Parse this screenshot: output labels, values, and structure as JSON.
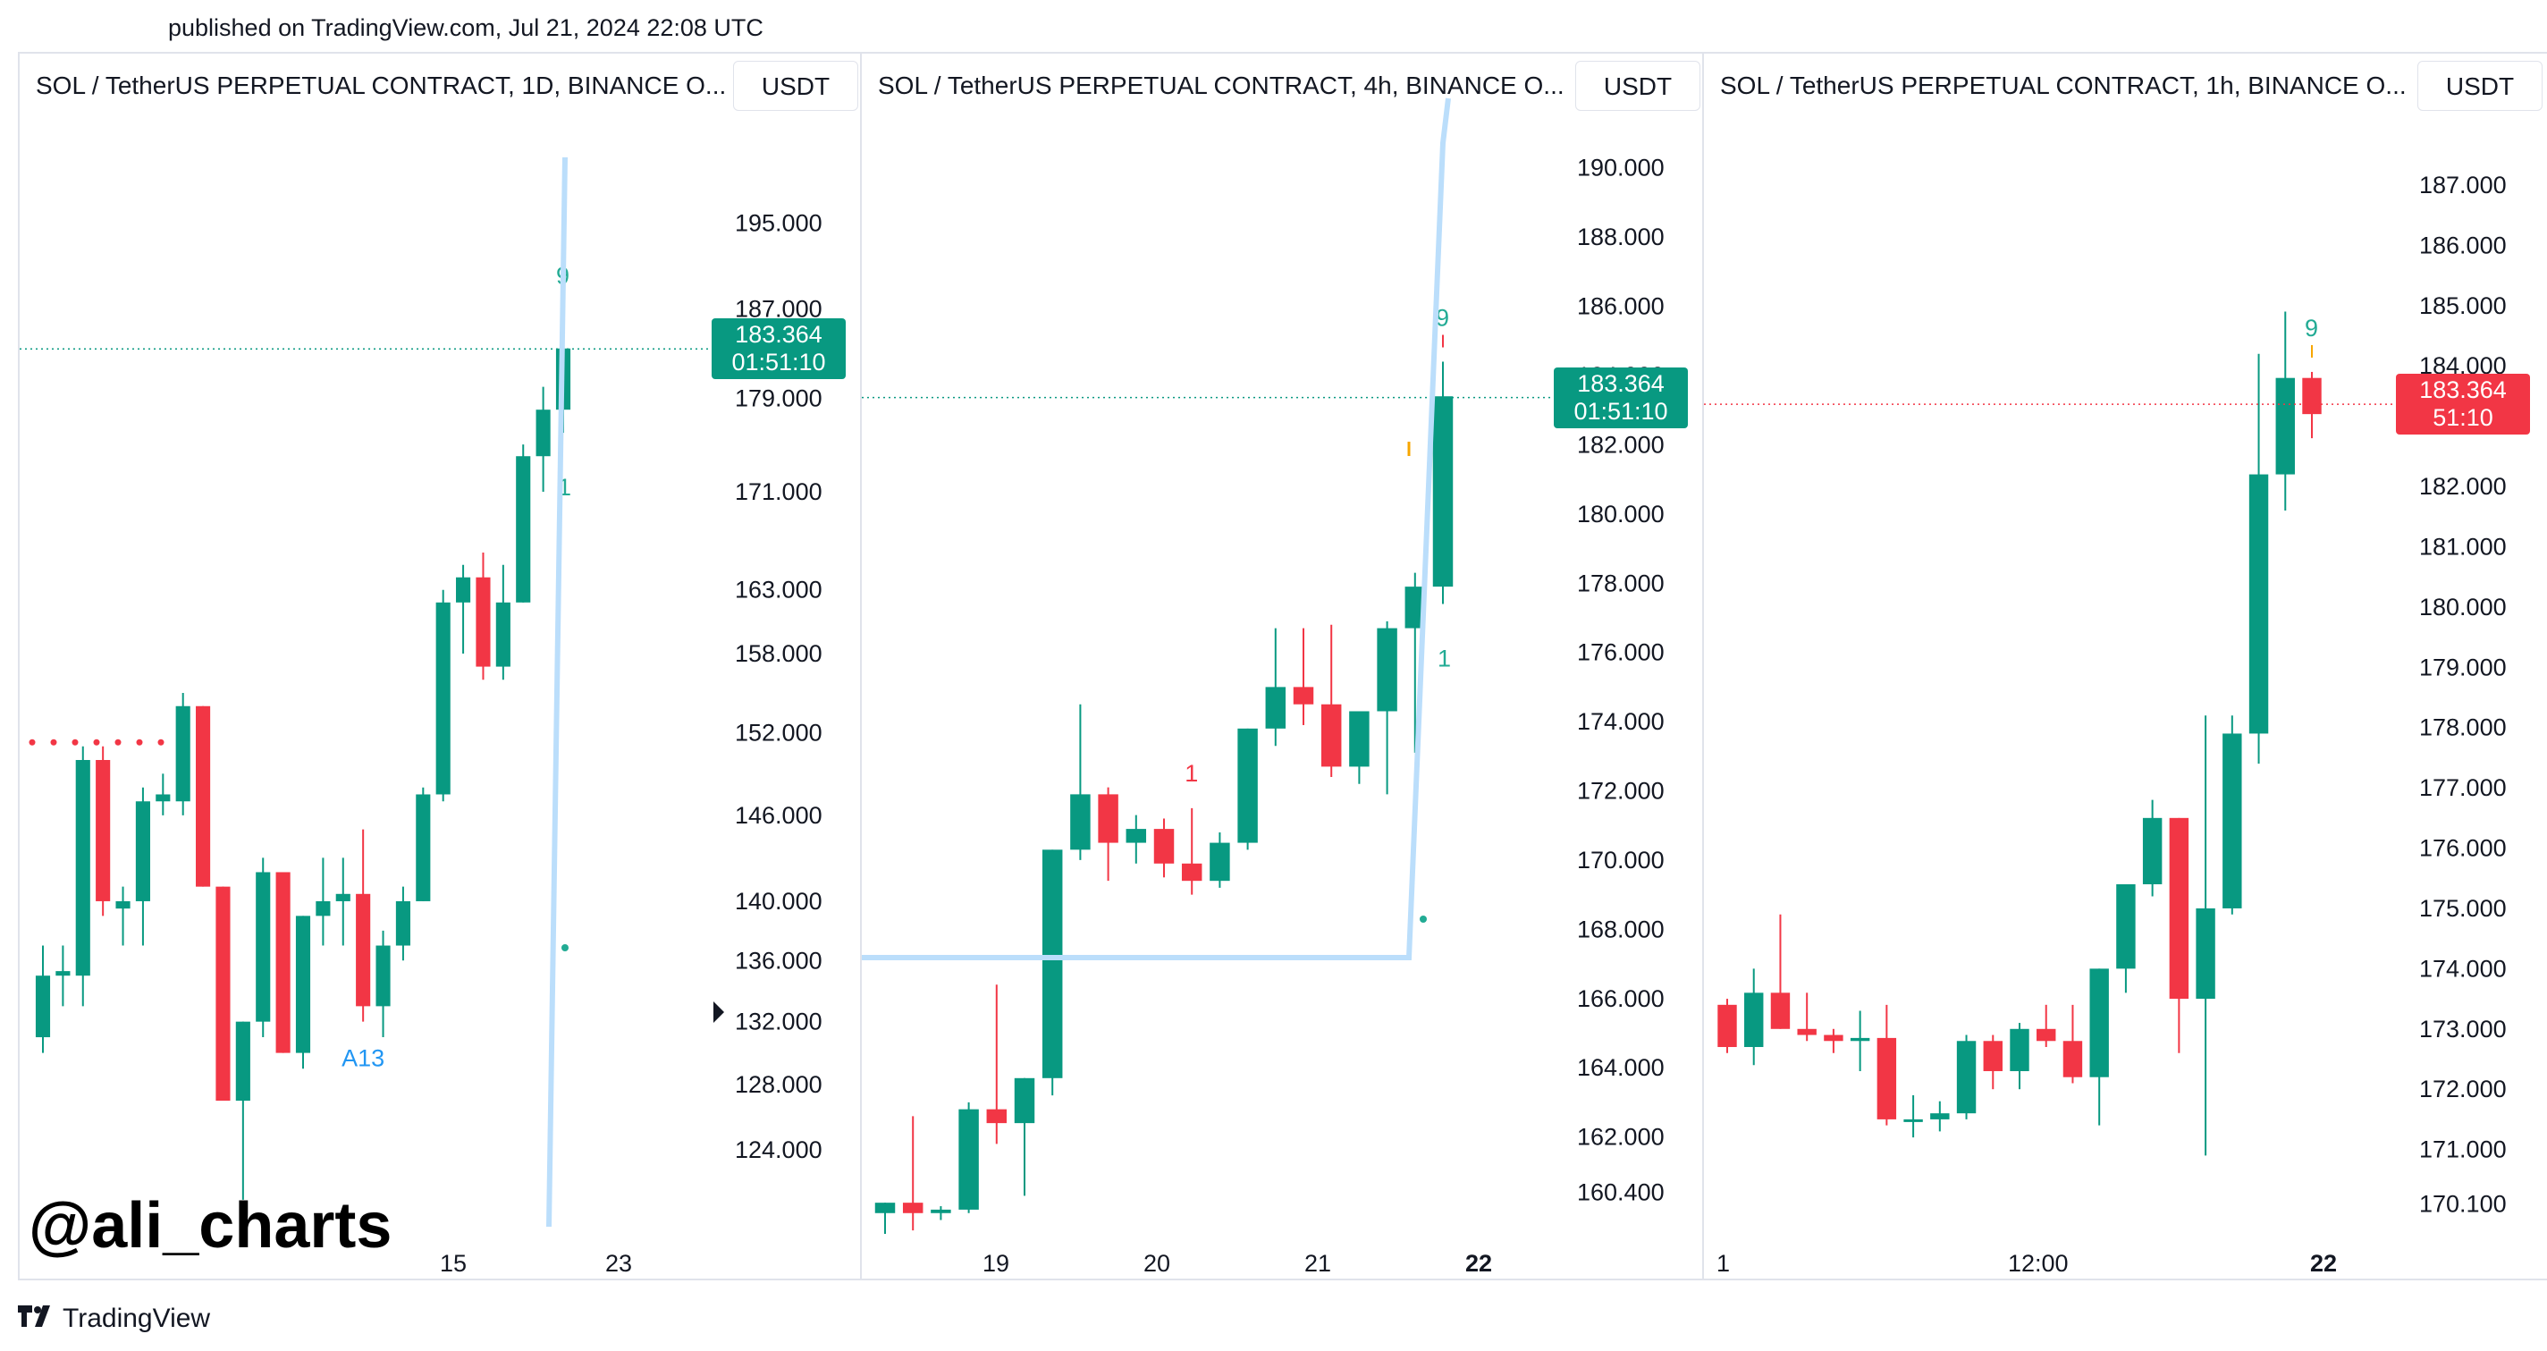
{
  "published": "published on TradingView.com, Jul 21, 2024 22:08 UTC",
  "watermark": "@ali_charts",
  "brand": "TradingView",
  "colors": {
    "up": "#089981",
    "down": "#f23645",
    "trendline": "#bbdefb",
    "td": "#22ab94",
    "dotted_red": "#f23645",
    "axis_text": "#131722"
  },
  "panels": [
    {
      "title": "SOL / TetherUS PERPETUAL CONTRACT, 1D, BINANCE  O...",
      "unit": "USDT",
      "price_tag": {
        "price": "183.364",
        "timer": "01:51:10",
        "color": "#089981"
      }
    },
    {
      "title": "SOL / TetherUS PERPETUAL CONTRACT, 4h, BINANCE  O...",
      "unit": "USDT",
      "price_tag": {
        "price": "183.364",
        "timer": "01:51:10",
        "color": "#089981"
      }
    },
    {
      "title": "SOL / TetherUS PERPETUAL CONTRACT, 1h, BINANCE  O...",
      "unit": "USDT",
      "price_tag": {
        "price": "183.364",
        "timer": "51:10",
        "color": "#f23645"
      }
    }
  ],
  "chart_data": [
    {
      "type": "candlestick",
      "timeframe": "1D",
      "scale": "log",
      "y_ticks": [
        "195.000",
        "187.000",
        "179.000",
        "171.000",
        "163.000",
        "158.000",
        "152.000",
        "146.000",
        "140.000",
        "136.000",
        "132.000",
        "128.000",
        "124.000"
      ],
      "x_ticks": [
        "15",
        "23"
      ],
      "last_price": 183.364,
      "candles": [
        {
          "o": 131,
          "h": 137,
          "l": 130,
          "c": 135
        },
        {
          "o": 135,
          "h": 137,
          "l": 133,
          "c": 135.3
        },
        {
          "o": 135,
          "h": 151,
          "l": 133,
          "c": 150
        },
        {
          "o": 150,
          "h": 151,
          "l": 139,
          "c": 140
        },
        {
          "o": 139.5,
          "h": 141,
          "l": 137,
          "c": 140
        },
        {
          "o": 140,
          "h": 148,
          "l": 137,
          "c": 147
        },
        {
          "o": 147,
          "h": 149,
          "l": 146,
          "c": 147.5
        },
        {
          "o": 147,
          "h": 155,
          "l": 146,
          "c": 154
        },
        {
          "o": 154,
          "h": 154,
          "l": 141,
          "c": 141
        },
        {
          "o": 141,
          "h": 141,
          "l": 127,
          "c": 127
        },
        {
          "o": 127,
          "h": 132,
          "l": 121,
          "c": 132
        },
        {
          "o": 132,
          "h": 143,
          "l": 131,
          "c": 142
        },
        {
          "o": 142,
          "h": 142,
          "l": 130,
          "c": 130
        },
        {
          "o": 130,
          "h": 139,
          "l": 129,
          "c": 139
        },
        {
          "o": 139,
          "h": 143,
          "l": 137,
          "c": 140
        },
        {
          "o": 140,
          "h": 143,
          "l": 137,
          "c": 140.5
        },
        {
          "o": 140.5,
          "h": 145,
          "l": 132,
          "c": 133
        },
        {
          "o": 133,
          "h": 138,
          "l": 131,
          "c": 137
        },
        {
          "o": 137,
          "h": 141,
          "l": 136,
          "c": 140
        },
        {
          "o": 140,
          "h": 148,
          "l": 140,
          "c": 147.5
        },
        {
          "o": 147.5,
          "h": 163,
          "l": 147,
          "c": 162
        },
        {
          "o": 162,
          "h": 165,
          "l": 158,
          "c": 164
        },
        {
          "o": 164,
          "h": 166,
          "l": 156,
          "c": 157
        },
        {
          "o": 157,
          "h": 165,
          "l": 156,
          "c": 162
        },
        {
          "o": 162,
          "h": 175,
          "l": 162,
          "c": 174
        },
        {
          "o": 174,
          "h": 180,
          "l": 171,
          "c": 178
        },
        {
          "o": 178,
          "h": 186,
          "l": 176,
          "c": 183.4
        }
      ],
      "annotations": [
        {
          "text": "9",
          "candle": 26,
          "kind": "td-top"
        },
        {
          "text": "1",
          "candle": 26,
          "kind": "td-below"
        },
        {
          "text": "A13",
          "candle": 16,
          "kind": "label-blue"
        }
      ]
    },
    {
      "type": "candlestick",
      "timeframe": "4h",
      "scale": "linear",
      "y_ticks": [
        "190.000",
        "188.000",
        "186.000",
        "184.000",
        "182.000",
        "180.000",
        "178.000",
        "176.000",
        "174.000",
        "172.000",
        "170.000",
        "168.000",
        "166.000",
        "164.000",
        "162.000",
        "160.400"
      ],
      "x_ticks": [
        "19",
        "20",
        "21",
        "22"
      ],
      "last_price": 183.364,
      "candles": [
        {
          "o": 159.8,
          "h": 160.1,
          "l": 159.2,
          "c": 160.1
        },
        {
          "o": 160.1,
          "h": 162.6,
          "l": 159.3,
          "c": 159.8
        },
        {
          "o": 159.8,
          "h": 160.0,
          "l": 159.6,
          "c": 159.9
        },
        {
          "o": 159.9,
          "h": 163.0,
          "l": 159.8,
          "c": 162.8
        },
        {
          "o": 162.8,
          "h": 166.4,
          "l": 161.8,
          "c": 162.4
        },
        {
          "o": 162.4,
          "h": 163.7,
          "l": 160.3,
          "c": 163.7
        },
        {
          "o": 163.7,
          "h": 170.3,
          "l": 163.2,
          "c": 170.3
        },
        {
          "o": 170.3,
          "h": 174.5,
          "l": 170.0,
          "c": 171.9
        },
        {
          "o": 171.9,
          "h": 172.1,
          "l": 169.4,
          "c": 170.5
        },
        {
          "o": 170.5,
          "h": 171.3,
          "l": 169.9,
          "c": 170.9
        },
        {
          "o": 170.9,
          "h": 171.2,
          "l": 169.5,
          "c": 169.9
        },
        {
          "o": 169.9,
          "h": 171.5,
          "l": 169.0,
          "c": 169.4
        },
        {
          "o": 169.4,
          "h": 170.8,
          "l": 169.2,
          "c": 170.5
        },
        {
          "o": 170.5,
          "h": 173.8,
          "l": 170.3,
          "c": 173.8
        },
        {
          "o": 173.8,
          "h": 176.7,
          "l": 173.3,
          "c": 175.0
        },
        {
          "o": 175.0,
          "h": 176.7,
          "l": 173.9,
          "c": 174.5
        },
        {
          "o": 174.5,
          "h": 176.8,
          "l": 172.4,
          "c": 172.7
        },
        {
          "o": 172.7,
          "h": 174.1,
          "l": 172.2,
          "c": 174.3
        },
        {
          "o": 174.3,
          "h": 176.9,
          "l": 171.9,
          "c": 176.7
        },
        {
          "o": 176.7,
          "h": 178.3,
          "l": 173.1,
          "c": 177.9
        },
        {
          "o": 177.9,
          "h": 184.4,
          "l": 177.4,
          "c": 183.4
        }
      ],
      "annotations": [
        {
          "text": "9",
          "candle": 20,
          "kind": "td-top"
        },
        {
          "text": "1",
          "candle": 20,
          "kind": "td-below"
        },
        {
          "text": "1",
          "candle": 11,
          "kind": "td-red"
        }
      ]
    },
    {
      "type": "candlestick",
      "timeframe": "1h",
      "scale": "linear",
      "y_ticks": [
        "187.000",
        "186.000",
        "185.000",
        "184.000",
        "183.000",
        "182.000",
        "181.000",
        "180.000",
        "179.000",
        "178.000",
        "177.000",
        "176.000",
        "175.000",
        "174.000",
        "173.000",
        "172.000",
        "171.000",
        "170.100"
      ],
      "x_ticks": [
        "1",
        "12:00",
        "22"
      ],
      "last_price": 183.364,
      "candles": [
        {
          "o": 173.4,
          "h": 173.5,
          "l": 172.6,
          "c": 172.7
        },
        {
          "o": 172.7,
          "h": 174.0,
          "l": 172.4,
          "c": 173.6
        },
        {
          "o": 173.6,
          "h": 174.9,
          "l": 173.0,
          "c": 173.0
        },
        {
          "o": 173.0,
          "h": 173.6,
          "l": 172.8,
          "c": 172.9
        },
        {
          "o": 172.9,
          "h": 173.0,
          "l": 172.6,
          "c": 172.8
        },
        {
          "o": 172.8,
          "h": 173.3,
          "l": 172.3,
          "c": 172.85
        },
        {
          "o": 172.85,
          "h": 173.4,
          "l": 171.4,
          "c": 171.5
        },
        {
          "o": 171.5,
          "h": 171.9,
          "l": 171.2,
          "c": 171.5
        },
        {
          "o": 171.5,
          "h": 171.8,
          "l": 171.3,
          "c": 171.6
        },
        {
          "o": 171.6,
          "h": 172.9,
          "l": 171.5,
          "c": 172.8
        },
        {
          "o": 172.8,
          "h": 172.9,
          "l": 172.0,
          "c": 172.3
        },
        {
          "o": 172.3,
          "h": 173.1,
          "l": 172.0,
          "c": 173.0
        },
        {
          "o": 173.0,
          "h": 173.4,
          "l": 172.7,
          "c": 172.8
        },
        {
          "o": 172.8,
          "h": 173.4,
          "l": 172.1,
          "c": 172.2
        },
        {
          "o": 172.2,
          "h": 174.0,
          "l": 171.4,
          "c": 174.0
        },
        {
          "o": 174.0,
          "h": 175.4,
          "l": 173.6,
          "c": 175.4
        },
        {
          "o": 175.4,
          "h": 176.8,
          "l": 175.2,
          "c": 176.5
        },
        {
          "o": 176.5,
          "h": 176.5,
          "l": 172.6,
          "c": 173.5
        },
        {
          "o": 173.5,
          "h": 178.2,
          "l": 170.9,
          "c": 175.0
        },
        {
          "o": 175.0,
          "h": 178.2,
          "l": 174.9,
          "c": 177.9
        },
        {
          "o": 177.9,
          "h": 184.2,
          "l": 177.4,
          "c": 182.2
        },
        {
          "o": 182.2,
          "h": 184.9,
          "l": 181.6,
          "c": 183.8
        },
        {
          "o": 183.8,
          "h": 183.9,
          "l": 182.8,
          "c": 183.2
        }
      ],
      "annotations": [
        {
          "text": "9",
          "candle": 22,
          "kind": "td-top"
        }
      ]
    }
  ]
}
